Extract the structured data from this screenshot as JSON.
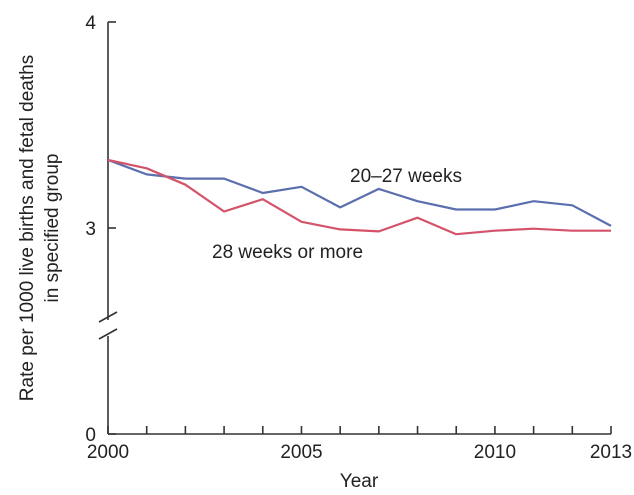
{
  "chart_data": {
    "type": "line",
    "title": "",
    "xlabel": "Year",
    "ylabel_lines": [
      "Rate per 1000 live births and fetal deaths",
      "in specified group"
    ],
    "xlim": [
      2000,
      2013
    ],
    "ylim": [
      0,
      4
    ],
    "y_axis_break": true,
    "x_ticks": [
      2000,
      2001,
      2002,
      2003,
      2004,
      2005,
      2006,
      2007,
      2008,
      2009,
      2010,
      2011,
      2012,
      2013
    ],
    "x_tick_labels": [
      {
        "x": 2000,
        "label": "2000"
      },
      {
        "x": 2005,
        "label": "2005"
      },
      {
        "x": 2010,
        "label": "2010"
      },
      {
        "x": 2013,
        "label": "2013"
      }
    ],
    "y_tick_labels": [
      {
        "y": 0,
        "label": "0"
      },
      {
        "y": 3,
        "label": "3"
      },
      {
        "y": 4,
        "label": "4"
      }
    ],
    "x": [
      2000,
      2001,
      2002,
      2003,
      2004,
      2005,
      2006,
      2007,
      2008,
      2009,
      2010,
      2011,
      2012,
      2013
    ],
    "series": [
      {
        "name": "20–27 weeks",
        "color": "#5b6fae",
        "values": [
          3.33,
          3.26,
          3.24,
          3.24,
          3.17,
          3.2,
          3.1,
          3.19,
          3.13,
          3.09,
          3.09,
          3.13,
          3.11,
          3.01
        ]
      },
      {
        "name": "28 weeks or more",
        "color": "#d4536a",
        "values": [
          3.33,
          3.29,
          3.21,
          3.08,
          3.14,
          3.03,
          2.98,
          2.95,
          3.05,
          2.91,
          2.96,
          2.99,
          2.96,
          2.96
        ]
      }
    ]
  }
}
